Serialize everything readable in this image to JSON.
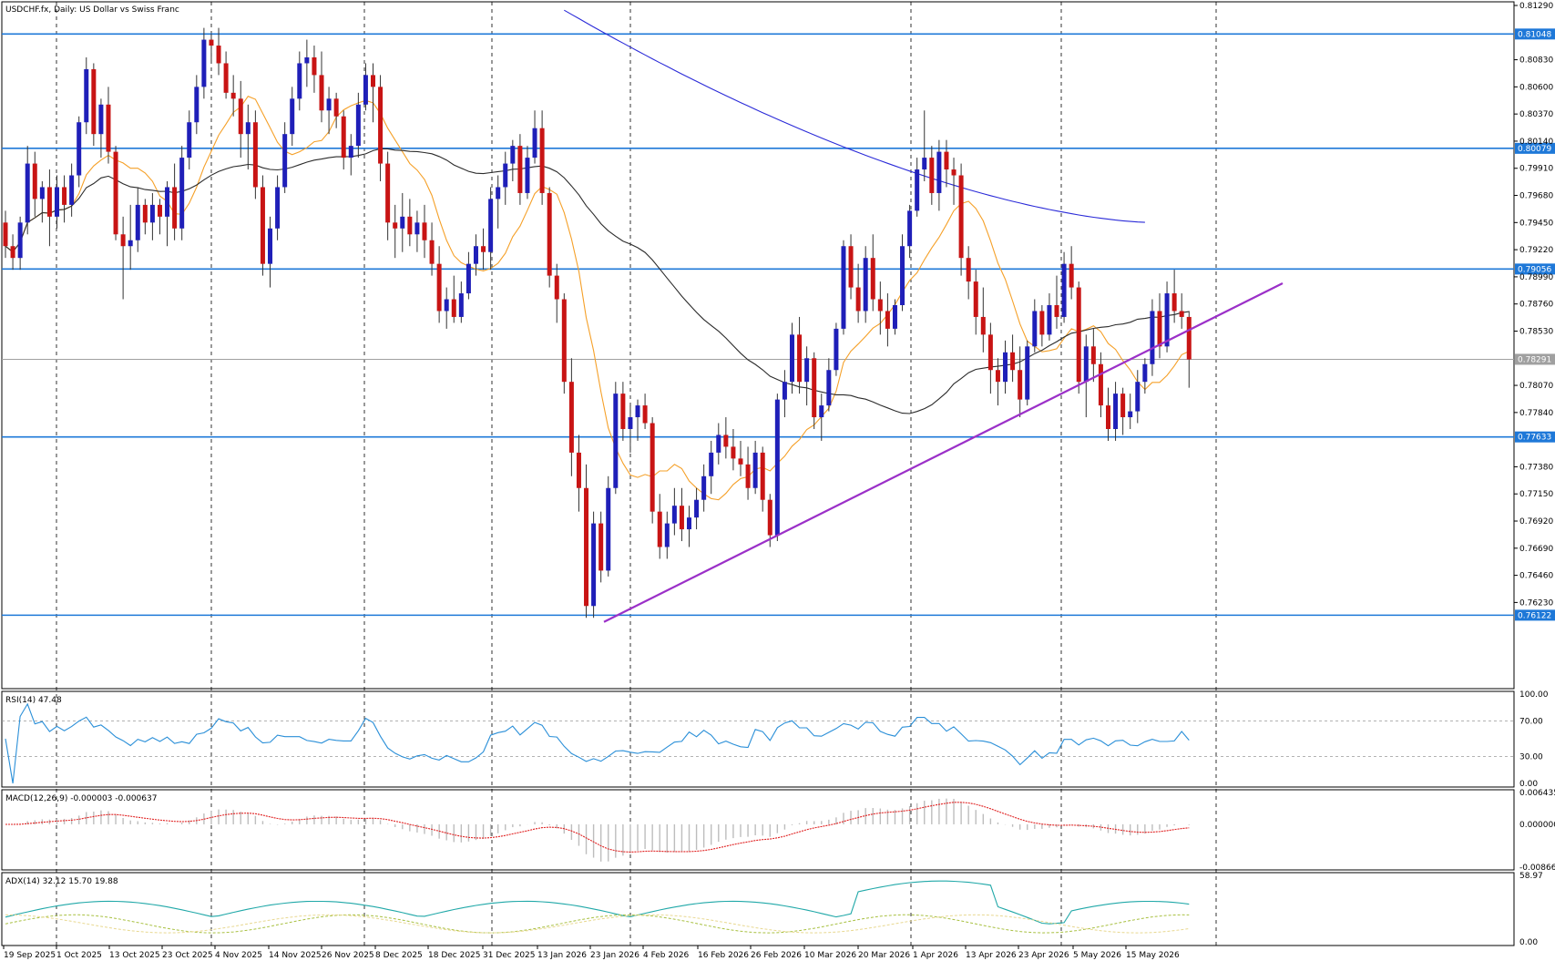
{
  "header": {
    "main_title": "USDCHF.fx, Daily:  US Dollar vs Swiss Franc",
    "rsi_title": "RSI(14) 47.48",
    "macd_title": "MACD(12,26,9) -0.000003 -0.000637",
    "adx_title": "ADX(14) 32.12 15.70 19.88"
  },
  "price_axis": {
    "ticks": [
      "0.81290",
      "0.81048",
      "0.80830",
      "0.80600",
      "0.80370",
      "0.80140",
      "0.79910",
      "0.79680",
      "0.79450",
      "0.79220",
      "0.78990",
      "0.78760",
      "0.78530",
      "0.78291",
      "0.78070",
      "0.77840",
      "0.77633",
      "0.77380",
      "0.77150",
      "0.76920",
      "0.76690",
      "0.76460",
      "0.76230",
      "0.76122"
    ],
    "current_price": "0.78291"
  },
  "levels": [
    {
      "value": 0.81048,
      "label": "0.81048"
    },
    {
      "value": 0.80079,
      "label": "0.80079"
    },
    {
      "value": 0.79056,
      "label": "0.79056"
    },
    {
      "value": 0.77633,
      "label": "0.77633"
    },
    {
      "value": 0.76122,
      "label": "0.76122"
    }
  ],
  "rsi_axis": [
    "100.00",
    "70.00",
    "30.00",
    "0.00"
  ],
  "macd_axis": [
    "0.006435",
    "0.000000",
    "-0.008662"
  ],
  "adx_axis": [
    "58.97",
    "0.00"
  ],
  "date_axis": [
    "19 Sep 2025",
    "1 Oct 2025",
    "13 Oct 2025",
    "23 Oct 2025",
    "4 Nov 2025",
    "14 Nov 2025",
    "26 Nov 2025",
    "8 Dec 2025",
    "18 Dec 2025",
    "31 Dec 2025",
    "13 Jan 2026",
    "23 Jan 2026",
    "4 Feb 2026",
    "16 Feb 2026",
    "26 Feb 2026",
    "10 Mar 2026",
    "20 Mar 2026",
    "1 Apr 2026",
    "13 Apr 2026",
    "23 Apr 2026",
    "5 May 2026",
    "15 May 2026"
  ],
  "colors": {
    "bull": "#1f1fb8",
    "bear": "#c81414",
    "level": "#1e78d8",
    "trend": "#9b30c8",
    "ma_fast": "#f5a028",
    "ma_mid": "#2b2b2b",
    "ma_slow": "#2a2ad8",
    "rsi": "#2a8fd8",
    "macd_signal": "#e02020",
    "adx": "#20a8a8",
    "di_plus": "#a8c040",
    "di_minus": "#e8d890"
  },
  "chart_data": {
    "type": "candlestick",
    "symbol": "USDCHF.fx",
    "timeframe": "Daily",
    "ylim": [
      0.7604,
      0.8129
    ],
    "ohlc": [
      [
        0.7945,
        0.7955,
        0.7915,
        0.7925
      ],
      [
        0.7925,
        0.7935,
        0.7905,
        0.7915
      ],
      [
        0.7915,
        0.795,
        0.7905,
        0.7945
      ],
      [
        0.7945,
        0.801,
        0.7935,
        0.7995
      ],
      [
        0.7995,
        0.8005,
        0.795,
        0.7965
      ],
      [
        0.7965,
        0.798,
        0.7945,
        0.7975
      ],
      [
        0.7975,
        0.799,
        0.7925,
        0.795
      ],
      [
        0.795,
        0.7985,
        0.794,
        0.7975
      ],
      [
        0.7975,
        0.7985,
        0.7945,
        0.796
      ],
      [
        0.796,
        0.7995,
        0.795,
        0.7985
      ],
      [
        0.7985,
        0.8035,
        0.7975,
        0.803
      ],
      [
        0.803,
        0.8085,
        0.802,
        0.8075
      ],
      [
        0.8075,
        0.808,
        0.801,
        0.802
      ],
      [
        0.802,
        0.805,
        0.8,
        0.8045
      ],
      [
        0.8045,
        0.806,
        0.7995,
        0.8005
      ],
      [
        0.8005,
        0.801,
        0.793,
        0.7935
      ],
      [
        0.7935,
        0.795,
        0.788,
        0.7925
      ],
      [
        0.7925,
        0.796,
        0.7905,
        0.793
      ],
      [
        0.793,
        0.7975,
        0.792,
        0.796
      ],
      [
        0.796,
        0.7965,
        0.7935,
        0.7945
      ],
      [
        0.7945,
        0.797,
        0.793,
        0.796
      ],
      [
        0.796,
        0.7965,
        0.7935,
        0.795
      ],
      [
        0.795,
        0.798,
        0.7925,
        0.7975
      ],
      [
        0.7975,
        0.7995,
        0.793,
        0.794
      ],
      [
        0.794,
        0.801,
        0.793,
        0.8
      ],
      [
        0.8,
        0.804,
        0.799,
        0.803
      ],
      [
        0.803,
        0.807,
        0.802,
        0.806
      ],
      [
        0.806,
        0.811,
        0.805,
        0.81
      ],
      [
        0.81,
        0.8105,
        0.808,
        0.8095
      ],
      [
        0.8095,
        0.811,
        0.807,
        0.808
      ],
      [
        0.808,
        0.809,
        0.805,
        0.8055
      ],
      [
        0.8055,
        0.807,
        0.8035,
        0.805
      ],
      [
        0.805,
        0.8065,
        0.8,
        0.802
      ],
      [
        0.802,
        0.8045,
        0.799,
        0.803
      ],
      [
        0.803,
        0.804,
        0.7965,
        0.7975
      ],
      [
        0.7975,
        0.7985,
        0.79,
        0.791
      ],
      [
        0.791,
        0.795,
        0.789,
        0.794
      ],
      [
        0.794,
        0.7985,
        0.793,
        0.7975
      ],
      [
        0.7975,
        0.803,
        0.797,
        0.802
      ],
      [
        0.802,
        0.806,
        0.801,
        0.805
      ],
      [
        0.805,
        0.809,
        0.804,
        0.808
      ],
      [
        0.808,
        0.81,
        0.806,
        0.8085
      ],
      [
        0.8085,
        0.8095,
        0.8055,
        0.807
      ],
      [
        0.807,
        0.809,
        0.803,
        0.804
      ],
      [
        0.804,
        0.806,
        0.802,
        0.805
      ],
      [
        0.805,
        0.8055,
        0.8025,
        0.8035
      ],
      [
        0.8035,
        0.804,
        0.799,
        0.8
      ],
      [
        0.8,
        0.802,
        0.7985,
        0.801
      ],
      [
        0.801,
        0.8055,
        0.8,
        0.8045
      ],
      [
        0.8045,
        0.808,
        0.804,
        0.807
      ],
      [
        0.807,
        0.808,
        0.803,
        0.806
      ],
      [
        0.806,
        0.807,
        0.798,
        0.7995
      ],
      [
        0.7995,
        0.8005,
        0.793,
        0.7945
      ],
      [
        0.7945,
        0.796,
        0.7915,
        0.794
      ],
      [
        0.794,
        0.797,
        0.792,
        0.795
      ],
      [
        0.795,
        0.7965,
        0.7925,
        0.7935
      ],
      [
        0.7935,
        0.7955,
        0.792,
        0.7945
      ],
      [
        0.7945,
        0.796,
        0.7915,
        0.793
      ],
      [
        0.793,
        0.7945,
        0.79,
        0.791
      ],
      [
        0.791,
        0.7925,
        0.786,
        0.787
      ],
      [
        0.787,
        0.789,
        0.7855,
        0.788
      ],
      [
        0.788,
        0.79,
        0.786,
        0.7865
      ],
      [
        0.7865,
        0.7895,
        0.786,
        0.7885
      ],
      [
        0.7885,
        0.792,
        0.788,
        0.791
      ],
      [
        0.791,
        0.7935,
        0.79,
        0.7925
      ],
      [
        0.7925,
        0.794,
        0.7905,
        0.792
      ],
      [
        0.792,
        0.7975,
        0.7905,
        0.7965
      ],
      [
        0.7965,
        0.7985,
        0.794,
        0.7975
      ],
      [
        0.7975,
        0.8005,
        0.796,
        0.7995
      ],
      [
        0.7995,
        0.8015,
        0.798,
        0.801
      ],
      [
        0.801,
        0.802,
        0.796,
        0.797
      ],
      [
        0.797,
        0.801,
        0.7965,
        0.8
      ],
      [
        0.8,
        0.804,
        0.7995,
        0.8025
      ],
      [
        0.8025,
        0.804,
        0.796,
        0.797
      ],
      [
        0.797,
        0.7975,
        0.789,
        0.79
      ],
      [
        0.79,
        0.791,
        0.786,
        0.788
      ],
      [
        0.788,
        0.7885,
        0.78,
        0.781
      ],
      [
        0.781,
        0.783,
        0.773,
        0.775
      ],
      [
        0.775,
        0.7765,
        0.77,
        0.772
      ],
      [
        0.772,
        0.774,
        0.761,
        0.762
      ],
      [
        0.762,
        0.77,
        0.761,
        0.769
      ],
      [
        0.769,
        0.77,
        0.764,
        0.765
      ],
      [
        0.765,
        0.773,
        0.7645,
        0.772
      ],
      [
        0.772,
        0.781,
        0.7715,
        0.78
      ],
      [
        0.78,
        0.781,
        0.776,
        0.777
      ],
      [
        0.777,
        0.779,
        0.775,
        0.778
      ],
      [
        0.778,
        0.7795,
        0.776,
        0.779
      ],
      [
        0.779,
        0.78,
        0.777,
        0.7775
      ],
      [
        0.7775,
        0.778,
        0.769,
        0.77
      ],
      [
        0.77,
        0.7715,
        0.766,
        0.767
      ],
      [
        0.767,
        0.77,
        0.766,
        0.769
      ],
      [
        0.769,
        0.772,
        0.768,
        0.7705
      ],
      [
        0.7705,
        0.772,
        0.7675,
        0.7685
      ],
      [
        0.7685,
        0.7705,
        0.767,
        0.7695
      ],
      [
        0.7695,
        0.772,
        0.7685,
        0.771
      ],
      [
        0.771,
        0.774,
        0.77,
        0.773
      ],
      [
        0.773,
        0.776,
        0.7715,
        0.775
      ],
      [
        0.775,
        0.7775,
        0.774,
        0.7765
      ],
      [
        0.7765,
        0.778,
        0.7745,
        0.7755
      ],
      [
        0.7755,
        0.777,
        0.7735,
        0.7745
      ],
      [
        0.7745,
        0.776,
        0.773,
        0.774
      ],
      [
        0.774,
        0.7755,
        0.771,
        0.772
      ],
      [
        0.772,
        0.776,
        0.7715,
        0.775
      ],
      [
        0.775,
        0.7755,
        0.77,
        0.771
      ],
      [
        0.771,
        0.7715,
        0.767,
        0.768
      ],
      [
        0.768,
        0.78,
        0.7675,
        0.7795
      ],
      [
        0.7795,
        0.782,
        0.778,
        0.781
      ],
      [
        0.781,
        0.786,
        0.78,
        0.785
      ],
      [
        0.785,
        0.7865,
        0.78,
        0.781
      ],
      [
        0.781,
        0.784,
        0.779,
        0.783
      ],
      [
        0.783,
        0.7835,
        0.777,
        0.778
      ],
      [
        0.778,
        0.78,
        0.776,
        0.779
      ],
      [
        0.779,
        0.783,
        0.7785,
        0.782
      ],
      [
        0.782,
        0.786,
        0.7815,
        0.7855
      ],
      [
        0.7855,
        0.793,
        0.785,
        0.7925
      ],
      [
        0.7925,
        0.7935,
        0.788,
        0.789
      ],
      [
        0.789,
        0.791,
        0.786,
        0.787
      ],
      [
        0.787,
        0.7925,
        0.786,
        0.7915
      ],
      [
        0.7915,
        0.7935,
        0.787,
        0.788
      ],
      [
        0.788,
        0.7895,
        0.785,
        0.787
      ],
      [
        0.787,
        0.7885,
        0.784,
        0.7855
      ],
      [
        0.7855,
        0.788,
        0.785,
        0.7875
      ],
      [
        0.7875,
        0.7935,
        0.787,
        0.7925
      ],
      [
        0.7925,
        0.796,
        0.7915,
        0.7955
      ],
      [
        0.7955,
        0.8,
        0.795,
        0.799
      ],
      [
        0.799,
        0.804,
        0.798,
        0.8
      ],
      [
        0.8,
        0.801,
        0.796,
        0.797
      ],
      [
        0.797,
        0.8015,
        0.7955,
        0.8005
      ],
      [
        0.8005,
        0.8015,
        0.7975,
        0.799
      ],
      [
        0.799,
        0.8,
        0.796,
        0.7985
      ],
      [
        0.7985,
        0.7995,
        0.79,
        0.7915
      ],
      [
        0.7915,
        0.7925,
        0.788,
        0.7895
      ],
      [
        0.7895,
        0.7905,
        0.785,
        0.7865
      ],
      [
        0.7865,
        0.789,
        0.7835,
        0.785
      ],
      [
        0.785,
        0.786,
        0.78,
        0.782
      ],
      [
        0.782,
        0.783,
        0.779,
        0.781
      ],
      [
        0.781,
        0.7845,
        0.78,
        0.7835
      ],
      [
        0.7835,
        0.785,
        0.781,
        0.782
      ],
      [
        0.782,
        0.784,
        0.778,
        0.7795
      ],
      [
        0.7795,
        0.7845,
        0.779,
        0.784
      ],
      [
        0.784,
        0.788,
        0.7835,
        0.787
      ],
      [
        0.787,
        0.7875,
        0.784,
        0.785
      ],
      [
        0.785,
        0.7885,
        0.7845,
        0.7875
      ],
      [
        0.7875,
        0.79,
        0.7855,
        0.7865
      ],
      [
        0.7865,
        0.792,
        0.786,
        0.791
      ],
      [
        0.791,
        0.7925,
        0.788,
        0.789
      ],
      [
        0.789,
        0.7895,
        0.78,
        0.781
      ],
      [
        0.781,
        0.785,
        0.778,
        0.784
      ],
      [
        0.784,
        0.7855,
        0.781,
        0.7825
      ],
      [
        0.7825,
        0.7835,
        0.778,
        0.779
      ],
      [
        0.779,
        0.7805,
        0.776,
        0.777
      ],
      [
        0.777,
        0.781,
        0.776,
        0.78
      ],
      [
        0.78,
        0.7805,
        0.7765,
        0.778
      ],
      [
        0.778,
        0.78,
        0.777,
        0.7785
      ],
      [
        0.7785,
        0.782,
        0.7775,
        0.781
      ],
      [
        0.781,
        0.783,
        0.78,
        0.7825
      ],
      [
        0.7825,
        0.788,
        0.7815,
        0.787
      ],
      [
        0.787,
        0.7885,
        0.783,
        0.784
      ],
      [
        0.784,
        0.7895,
        0.7835,
        0.7885
      ],
      [
        0.7885,
        0.7905,
        0.786,
        0.787
      ],
      [
        0.787,
        0.7885,
        0.7855,
        0.7865
      ],
      [
        0.7865,
        0.787,
        0.7805,
        0.7829
      ]
    ],
    "indicators": [
      "MA (fast)",
      "MA (mid)",
      "MA (slow)",
      "RSI(14)",
      "MACD(12,26,9)",
      "ADX(14)"
    ]
  }
}
